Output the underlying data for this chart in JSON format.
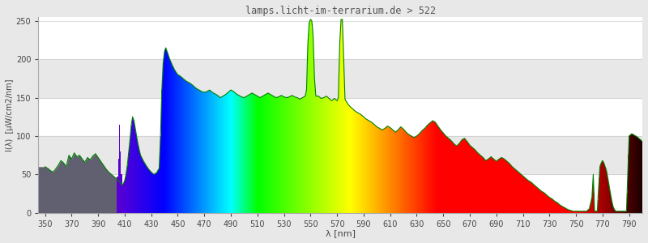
{
  "title": "lamps.licht-im-terrarium.de > 522",
  "xlabel": "λ [nm]",
  "ylabel": "I(λ)  [µW/cm2/nm]",
  "xlim": [
    345,
    800
  ],
  "ylim": [
    0,
    255
  ],
  "yticks": [
    0,
    50,
    100,
    150,
    200,
    250
  ],
  "xticks": [
    350,
    370,
    390,
    410,
    430,
    450,
    470,
    490,
    510,
    530,
    550,
    570,
    590,
    610,
    630,
    650,
    670,
    690,
    710,
    730,
    750,
    770,
    790
  ],
  "bg_color": "#e8e8e8",
  "plot_bg_color": "#ffffff",
  "grid_band_color": "#e8e8e8",
  "title_color": "#555555",
  "green_line_color": "#008000",
  "gray_fill_color": "#606070",
  "green_line": [
    [
      350,
      60
    ],
    [
      352,
      58
    ],
    [
      354,
      55
    ],
    [
      356,
      53
    ],
    [
      358,
      57
    ],
    [
      360,
      62
    ],
    [
      362,
      68
    ],
    [
      364,
      65
    ],
    [
      366,
      60
    ],
    [
      368,
      75
    ],
    [
      370,
      70
    ],
    [
      372,
      78
    ],
    [
      374,
      73
    ],
    [
      376,
      75
    ],
    [
      378,
      70
    ],
    [
      380,
      66
    ],
    [
      382,
      72
    ],
    [
      384,
      69
    ],
    [
      386,
      74
    ],
    [
      388,
      77
    ],
    [
      390,
      72
    ],
    [
      392,
      67
    ],
    [
      394,
      62
    ],
    [
      396,
      57
    ],
    [
      398,
      53
    ],
    [
      400,
      50
    ],
    [
      402,
      47
    ],
    [
      404,
      44
    ],
    [
      406,
      41
    ],
    [
      407,
      38
    ],
    [
      408,
      36
    ],
    [
      409,
      38
    ],
    [
      410,
      42
    ],
    [
      411,
      50
    ],
    [
      412,
      62
    ],
    [
      413,
      78
    ],
    [
      414,
      95
    ],
    [
      415,
      115
    ],
    [
      416,
      125
    ],
    [
      417,
      120
    ],
    [
      418,
      110
    ],
    [
      419,
      100
    ],
    [
      420,
      90
    ],
    [
      421,
      82
    ],
    [
      422,
      75
    ],
    [
      424,
      68
    ],
    [
      426,
      62
    ],
    [
      428,
      57
    ],
    [
      430,
      53
    ],
    [
      432,
      50
    ],
    [
      434,
      52
    ],
    [
      435,
      55
    ],
    [
      436,
      58
    ],
    [
      437,
      100
    ],
    [
      438,
      160
    ],
    [
      439,
      195
    ],
    [
      440,
      210
    ],
    [
      441,
      215
    ],
    [
      442,
      210
    ],
    [
      444,
      200
    ],
    [
      446,
      192
    ],
    [
      448,
      185
    ],
    [
      450,
      180
    ],
    [
      452,
      178
    ],
    [
      454,
      175
    ],
    [
      456,
      172
    ],
    [
      458,
      170
    ],
    [
      460,
      168
    ],
    [
      462,
      165
    ],
    [
      464,
      162
    ],
    [
      466,
      160
    ],
    [
      468,
      158
    ],
    [
      470,
      157
    ],
    [
      472,
      158
    ],
    [
      474,
      160
    ],
    [
      476,
      157
    ],
    [
      478,
      155
    ],
    [
      480,
      153
    ],
    [
      482,
      150
    ],
    [
      484,
      152
    ],
    [
      486,
      154
    ],
    [
      488,
      157
    ],
    [
      490,
      160
    ],
    [
      492,
      158
    ],
    [
      494,
      155
    ],
    [
      496,
      153
    ],
    [
      498,
      151
    ],
    [
      500,
      150
    ],
    [
      502,
      152
    ],
    [
      504,
      154
    ],
    [
      506,
      156
    ],
    [
      508,
      154
    ],
    [
      510,
      152
    ],
    [
      512,
      150
    ],
    [
      514,
      152
    ],
    [
      516,
      154
    ],
    [
      518,
      156
    ],
    [
      520,
      154
    ],
    [
      522,
      152
    ],
    [
      524,
      150
    ],
    [
      526,
      151
    ],
    [
      528,
      153
    ],
    [
      530,
      151
    ],
    [
      532,
      150
    ],
    [
      534,
      151
    ],
    [
      536,
      153
    ],
    [
      538,
      151
    ],
    [
      540,
      150
    ],
    [
      542,
      148
    ],
    [
      544,
      150
    ],
    [
      546,
      152
    ],
    [
      547,
      160
    ],
    [
      548,
      220
    ],
    [
      549,
      248
    ],
    [
      550,
      252
    ],
    [
      551,
      250
    ],
    [
      552,
      230
    ],
    [
      553,
      175
    ],
    [
      554,
      152
    ],
    [
      556,
      152
    ],
    [
      558,
      149
    ],
    [
      560,
      150
    ],
    [
      562,
      152
    ],
    [
      564,
      149
    ],
    [
      566,
      146
    ],
    [
      568,
      149
    ],
    [
      570,
      146
    ],
    [
      571,
      150
    ],
    [
      572,
      220
    ],
    [
      573,
      252
    ],
    [
      574,
      252
    ],
    [
      575,
      200
    ],
    [
      576,
      148
    ],
    [
      578,
      142
    ],
    [
      580,
      138
    ],
    [
      582,
      135
    ],
    [
      584,
      132
    ],
    [
      586,
      130
    ],
    [
      588,
      128
    ],
    [
      590,
      125
    ],
    [
      592,
      122
    ],
    [
      594,
      120
    ],
    [
      596,
      118
    ],
    [
      598,
      115
    ],
    [
      600,
      112
    ],
    [
      602,
      110
    ],
    [
      604,
      108
    ],
    [
      606,
      110
    ],
    [
      608,
      113
    ],
    [
      610,
      111
    ],
    [
      612,
      108
    ],
    [
      614,
      105
    ],
    [
      616,
      108
    ],
    [
      618,
      112
    ],
    [
      620,
      109
    ],
    [
      622,
      105
    ],
    [
      624,
      102
    ],
    [
      626,
      100
    ],
    [
      628,
      98
    ],
    [
      630,
      100
    ],
    [
      632,
      103
    ],
    [
      634,
      107
    ],
    [
      636,
      110
    ],
    [
      638,
      114
    ],
    [
      640,
      117
    ],
    [
      642,
      120
    ],
    [
      644,
      118
    ],
    [
      646,
      113
    ],
    [
      648,
      108
    ],
    [
      650,
      104
    ],
    [
      652,
      100
    ],
    [
      654,
      97
    ],
    [
      656,
      94
    ],
    [
      658,
      90
    ],
    [
      660,
      87
    ],
    [
      662,
      90
    ],
    [
      664,
      95
    ],
    [
      666,
      97
    ],
    [
      668,
      93
    ],
    [
      670,
      88
    ],
    [
      672,
      85
    ],
    [
      674,
      82
    ],
    [
      676,
      78
    ],
    [
      678,
      75
    ],
    [
      680,
      72
    ],
    [
      682,
      68
    ],
    [
      684,
      70
    ],
    [
      686,
      73
    ],
    [
      688,
      70
    ],
    [
      690,
      67
    ],
    [
      692,
      70
    ],
    [
      694,
      72
    ],
    [
      696,
      70
    ],
    [
      698,
      67
    ],
    [
      700,
      64
    ],
    [
      702,
      60
    ],
    [
      704,
      57
    ],
    [
      706,
      54
    ],
    [
      708,
      51
    ],
    [
      710,
      48
    ],
    [
      712,
      45
    ],
    [
      714,
      42
    ],
    [
      716,
      40
    ],
    [
      718,
      37
    ],
    [
      720,
      34
    ],
    [
      722,
      31
    ],
    [
      724,
      28
    ],
    [
      726,
      26
    ],
    [
      728,
      23
    ],
    [
      730,
      20
    ],
    [
      732,
      18
    ],
    [
      734,
      15
    ],
    [
      736,
      13
    ],
    [
      738,
      10
    ],
    [
      740,
      8
    ],
    [
      742,
      6
    ],
    [
      744,
      4
    ],
    [
      746,
      3
    ],
    [
      748,
      2
    ],
    [
      750,
      2
    ],
    [
      752,
      2
    ],
    [
      754,
      2
    ],
    [
      756,
      2
    ],
    [
      758,
      2
    ],
    [
      760,
      5
    ],
    [
      762,
      20
    ],
    [
      763,
      50
    ],
    [
      764,
      2
    ],
    [
      765,
      2
    ],
    [
      766,
      2
    ],
    [
      768,
      60
    ],
    [
      769,
      65
    ],
    [
      770,
      68
    ],
    [
      771,
      65
    ],
    [
      772,
      60
    ],
    [
      773,
      55
    ],
    [
      774,
      45
    ],
    [
      775,
      35
    ],
    [
      776,
      25
    ],
    [
      777,
      15
    ],
    [
      778,
      8
    ],
    [
      779,
      4
    ],
    [
      780,
      2
    ],
    [
      782,
      2
    ],
    [
      784,
      2
    ],
    [
      786,
      2
    ],
    [
      788,
      2
    ],
    [
      790,
      100
    ],
    [
      792,
      103
    ],
    [
      794,
      101
    ],
    [
      796,
      99
    ],
    [
      798,
      96
    ],
    [
      800,
      93
    ]
  ]
}
